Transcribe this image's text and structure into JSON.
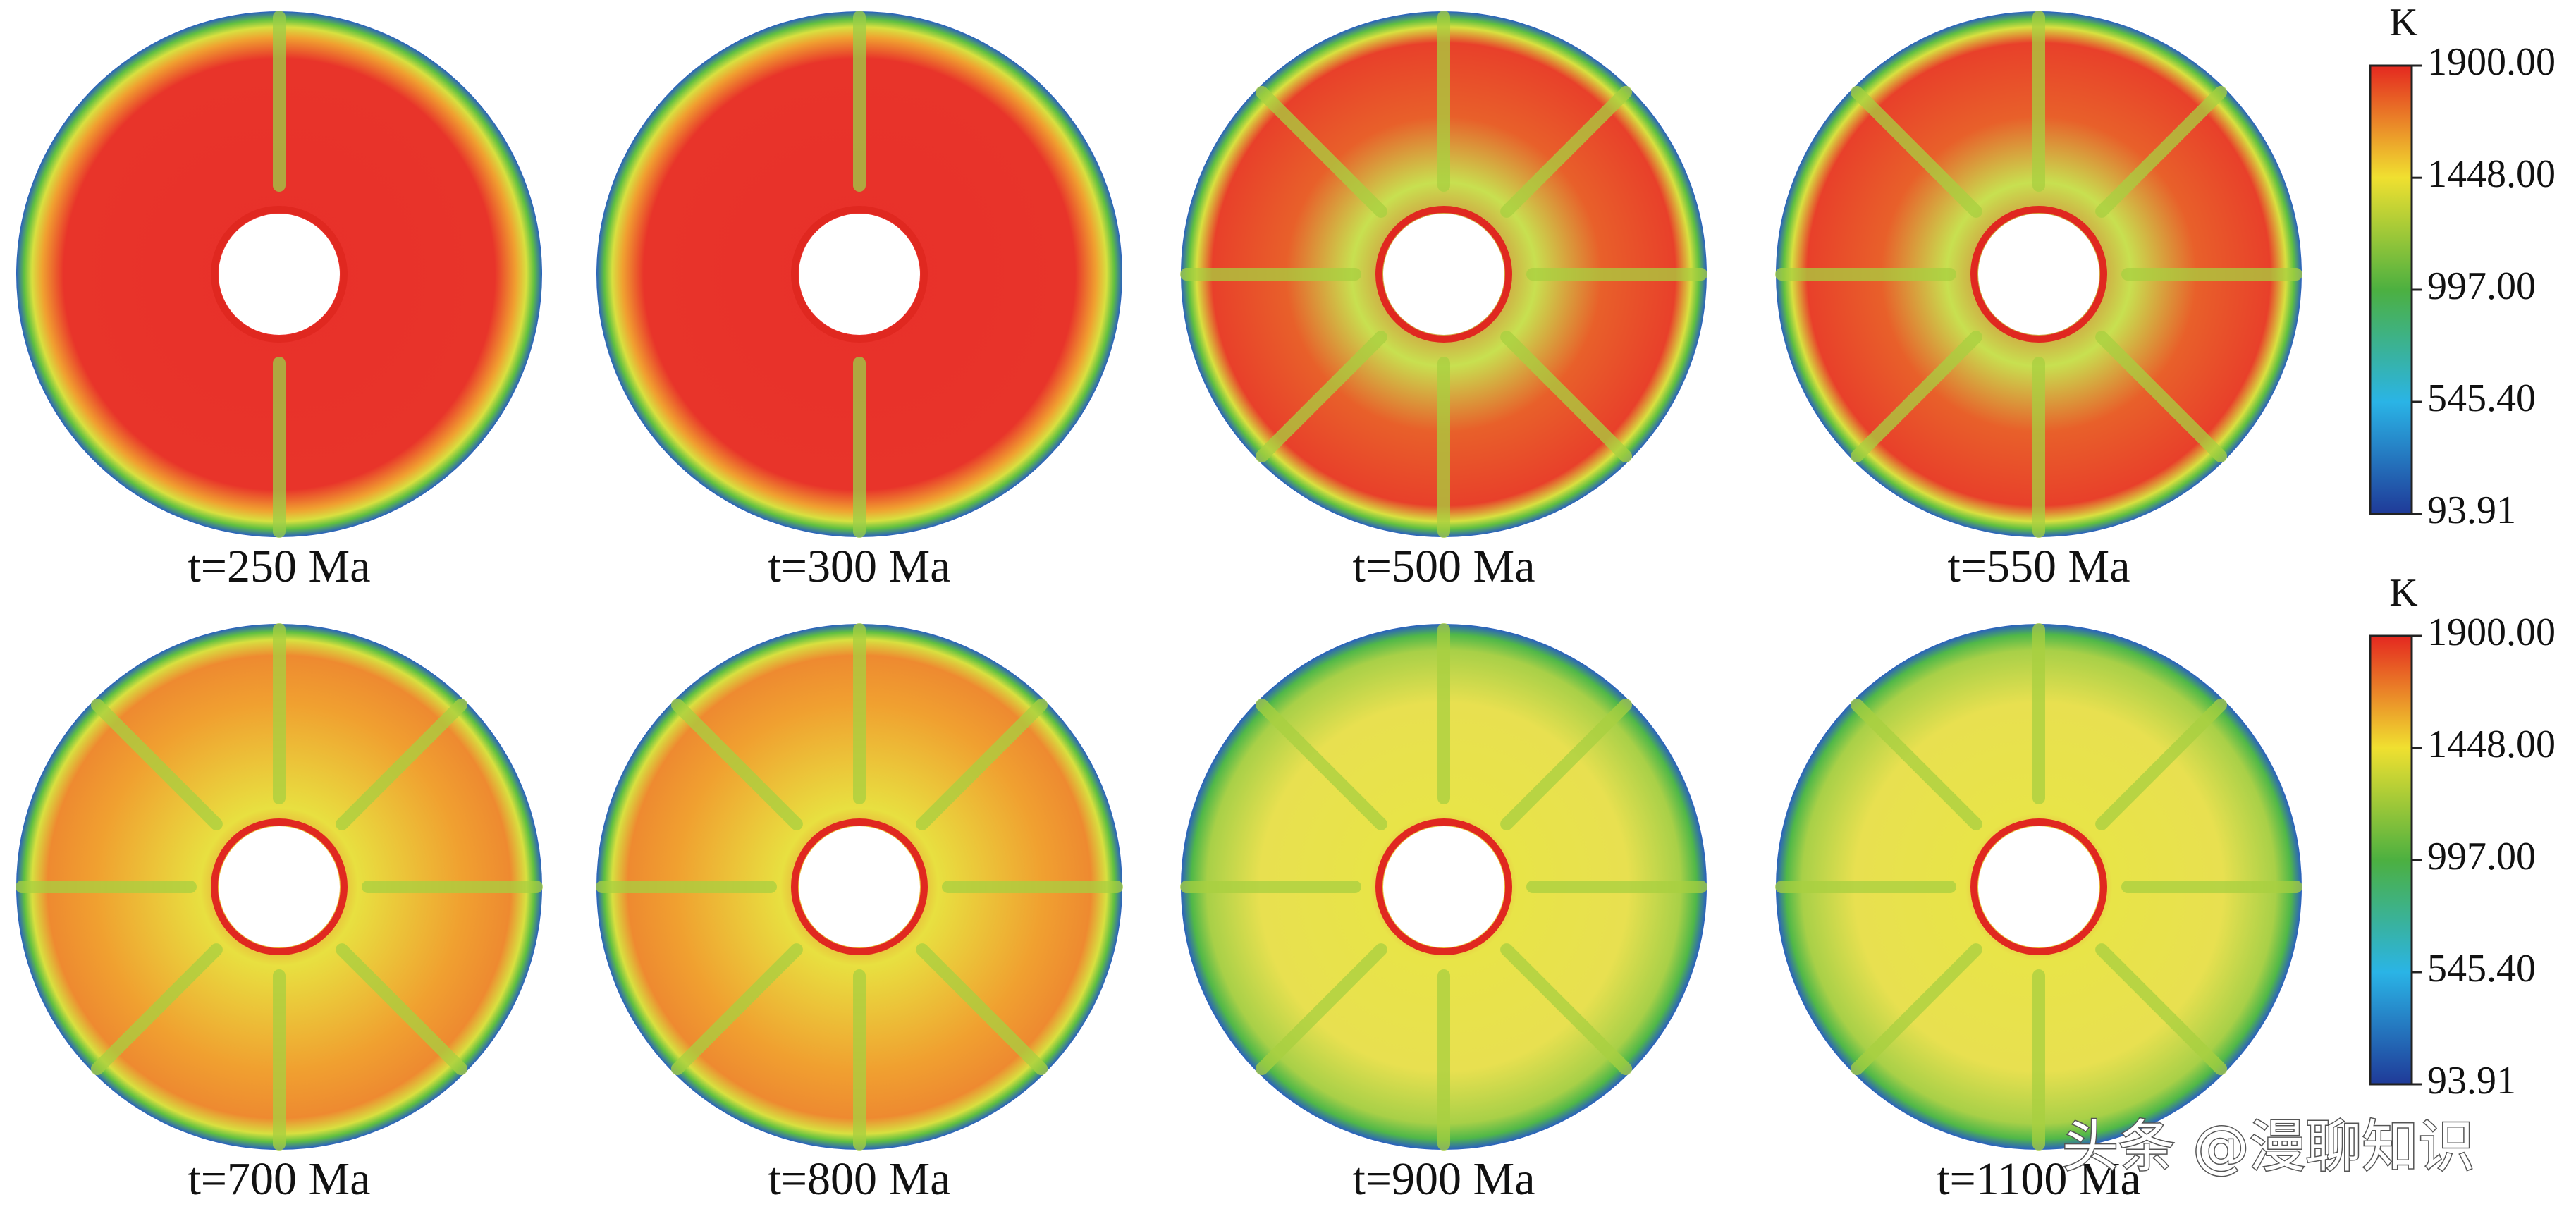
{
  "panels": [
    {
      "label": "t=250 Ma"
    },
    {
      "label": "t=300 Ma"
    },
    {
      "label": "t=500 Ma"
    },
    {
      "label": "t=550 Ma"
    },
    {
      "label": "t=700 Ma"
    },
    {
      "label": "t=800 Ma"
    },
    {
      "label": "t=900 Ma"
    },
    {
      "label": "t=1100 Ma"
    }
  ],
  "colorbars": [
    {
      "unit": "K",
      "range": [
        93.91,
        1900
      ],
      "ticks": [
        {
          "value": 1900,
          "label": "1900.00"
        },
        {
          "value": 1448,
          "label": "1448.00"
        },
        {
          "value": 997,
          "label": "997.00"
        },
        {
          "value": 545.4,
          "label": "545.40"
        },
        93.91
      ]
    },
    {
      "unit": "K",
      "range": [
        93.91,
        1900
      ],
      "ticks": [
        {
          "value": 1900,
          "label": "1900.00"
        },
        {
          "value": 1448,
          "label": "1448.00"
        },
        {
          "value": 997,
          "label": "997.00"
        },
        {
          "value": 545.4,
          "label": "545.40"
        },
        93.91
      ]
    }
  ],
  "watermark": "头条 @漫聊知识"
}
